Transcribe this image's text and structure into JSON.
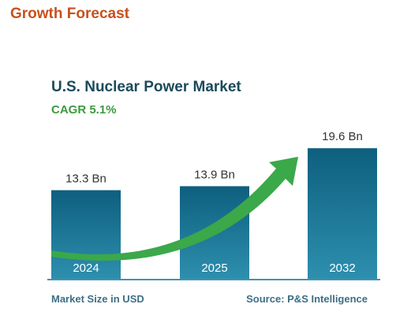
{
  "heading": "Growth Forecast",
  "colors": {
    "heading": "#c8501e",
    "title": "#1b4a5c",
    "cagr": "#3b9a3e",
    "bar_top": "#0e5f7e",
    "bar_bottom": "#2d8fae",
    "arrow": "#3ba84a",
    "axis": "#4a8fb0",
    "footer": "#3d6f86",
    "text": "#333333"
  },
  "chart_data": {
    "type": "bar",
    "title": "U.S. Nuclear Power Market",
    "subtitle": "CAGR 5.1%",
    "categories": [
      "2024",
      "2025",
      "2032"
    ],
    "values": [
      13.3,
      13.9,
      19.6
    ],
    "data_labels": [
      "13.3 Bn",
      "13.9 Bn",
      "19.6 Bn"
    ],
    "ylabel": "Market Size in USD",
    "source": "Source: P&S Intelligence",
    "grid": false,
    "legend": "none"
  }
}
